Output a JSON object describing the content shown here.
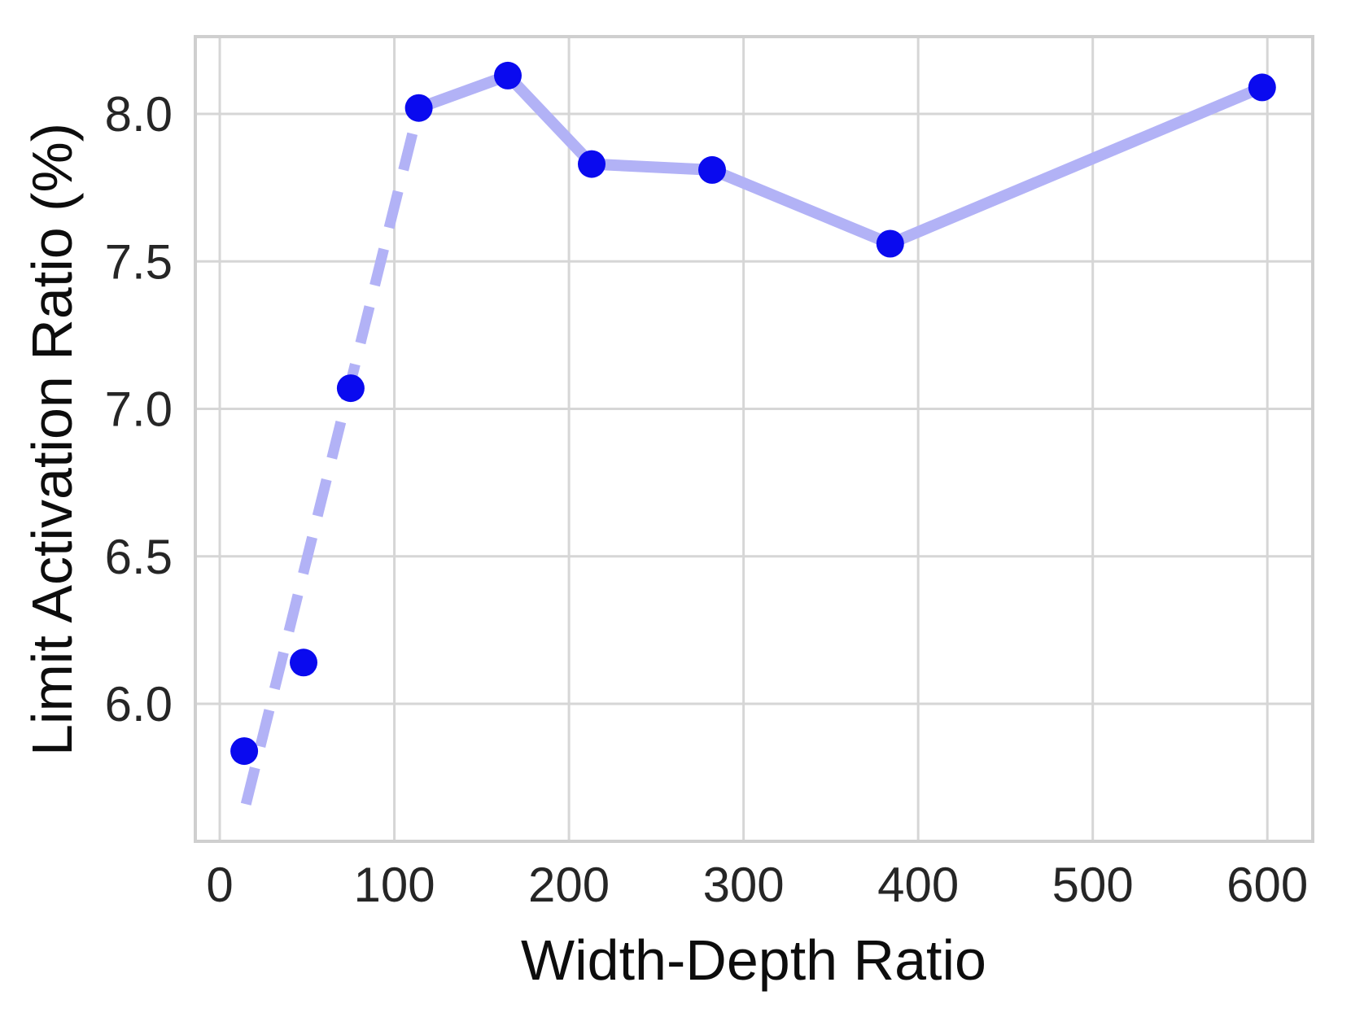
{
  "chart_data": {
    "type": "line",
    "title": "",
    "xlabel": "Width-Depth Ratio",
    "ylabel": "Limit Activation Ratio (%)",
    "xlim": [
      -14,
      626
    ],
    "ylim": [
      5.534,
      8.262
    ],
    "grid": true,
    "legend": "none",
    "x_ticks": [
      0,
      100,
      200,
      300,
      400,
      500,
      600
    ],
    "x_tick_labels": [
      "0",
      "100",
      "200",
      "300",
      "400",
      "500",
      "600"
    ],
    "y_ticks": [
      6.0,
      6.5,
      7.0,
      7.5,
      8.0
    ],
    "y_tick_labels": [
      "6.0",
      "6.5",
      "7.0",
      "7.5",
      "8.0"
    ],
    "series": [
      {
        "name": "limit-activation-ratio-points",
        "style": "scatter",
        "x": [
          14,
          48,
          75,
          114,
          165,
          213,
          282,
          384,
          597
        ],
        "y": [
          5.84,
          6.14,
          7.07,
          8.02,
          8.13,
          7.83,
          7.81,
          7.56,
          8.09
        ]
      },
      {
        "name": "solid-connector-line",
        "style": "solid",
        "x": [
          114,
          165,
          213,
          282,
          384,
          597
        ],
        "y": [
          8.02,
          8.13,
          7.83,
          7.81,
          7.56,
          8.09
        ]
      },
      {
        "name": "dashed-trend-line",
        "style": "dashed",
        "x": [
          15,
          114
        ],
        "y": [
          5.66,
          8.02
        ]
      }
    ],
    "colors": {
      "marker": "#0a0aef",
      "line": "#b2b2f6",
      "grid": "#d6d6d6",
      "spine": "#cfcfcf",
      "tick_text": "#262626",
      "label_text": "#0d0d0d",
      "background": "#ffffff"
    }
  }
}
